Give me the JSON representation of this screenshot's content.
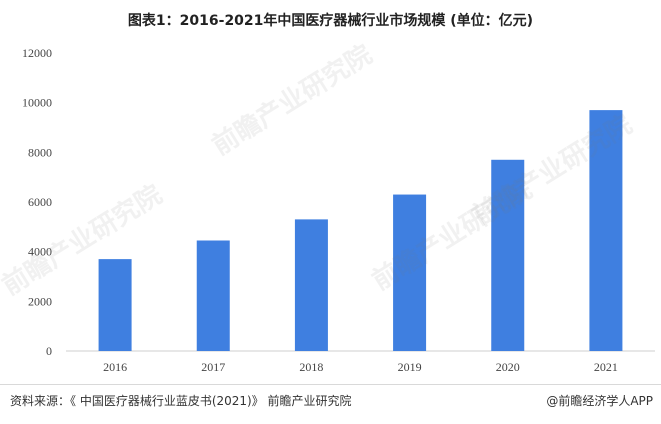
{
  "title": "图表1：2016-2021年中国医疗器械行业市场规模 (单位：亿元)",
  "footer": {
    "source": "资料来源：《 中国医疗器械行业蓝皮书(2021)》 前瞻产业研究院",
    "brand": "@前瞻经济学人APP"
  },
  "watermark": "前瞻产业研究院",
  "chart_data": {
    "type": "bar",
    "title": "图表1：2016-2021年中国医疗器械行业市场规模 (单位：亿元)",
    "categories": [
      "2016",
      "2017",
      "2018",
      "2019",
      "2020",
      "2021"
    ],
    "values": [
      3700,
      4450,
      5300,
      6300,
      7700,
      9700
    ],
    "ylim": [
      0,
      12000
    ],
    "yticks": [
      0,
      2000,
      4000,
      6000,
      8000,
      10000,
      12000
    ],
    "grid": false,
    "legend": "none",
    "bar_color": "#3f7fe0"
  }
}
